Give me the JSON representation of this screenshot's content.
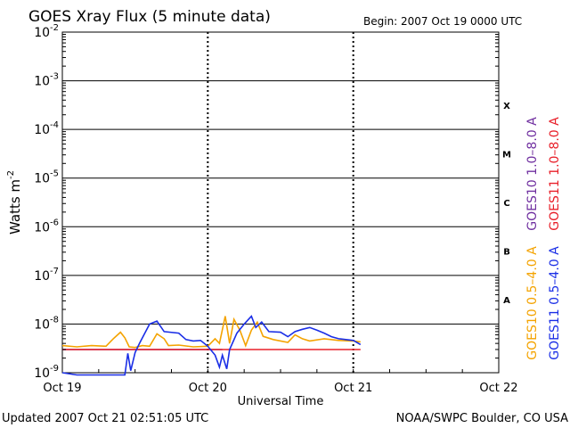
{
  "chart_data": {
    "type": "line",
    "title": "GOES Xray Flux (5 minute data)",
    "begin_label": "Begin:  2007 Oct 19 0000 UTC",
    "ylabel": "Watts m",
    "ylabel_exp": "-2",
    "xlabel": "Universal Time",
    "y_scale": "log",
    "ylim": [
      1e-09,
      0.01
    ],
    "y_ticks": [
      {
        "base": "10",
        "exp": "-2"
      },
      {
        "base": "10",
        "exp": "-3"
      },
      {
        "base": "10",
        "exp": "-4"
      },
      {
        "base": "10",
        "exp": "-5"
      },
      {
        "base": "10",
        "exp": "-6"
      },
      {
        "base": "10",
        "exp": "-7"
      },
      {
        "base": "10",
        "exp": "-8"
      },
      {
        "base": "10",
        "exp": "-9"
      }
    ],
    "x_ticks": [
      "Oct 19",
      "Oct 20",
      "Oct 21",
      "Oct 22"
    ],
    "xlim_days": [
      0,
      3
    ],
    "flare_classes": [
      {
        "label": "X",
        "exp": -4
      },
      {
        "label": "M",
        "exp": -5
      },
      {
        "label": "C",
        "exp": -6
      },
      {
        "label": "B",
        "exp": -7
      },
      {
        "label": "A",
        "exp": -8
      }
    ],
    "grid": true,
    "legend_position": "right",
    "legend": [
      {
        "name": "GOES10 1.0–8.0 A",
        "color": "#7030a0"
      },
      {
        "name": "GOES11 1.0–8.0 A",
        "color": "#e8202a"
      },
      {
        "name": "GOES10 0.5–4.0 A",
        "color": "#f4a300"
      },
      {
        "name": "GOES11 0.5–4.0 A",
        "color": "#1a2ee6"
      }
    ],
    "series": [
      {
        "name": "GOES10 1.0–8.0 A",
        "color": "#7030a0",
        "points": [
          [
            0.0,
            3e-09
          ],
          [
            1.1,
            3e-09
          ]
        ]
      },
      {
        "name": "GOES11 1.0–8.0 A",
        "color": "#e8202a",
        "points": [
          [
            0.0,
            3e-09
          ],
          [
            2.0,
            3e-09
          ],
          [
            2.05,
            3e-09
          ]
        ]
      },
      {
        "name": "GOES10 0.5–4.0 A",
        "color": "#f4a300",
        "points": [
          [
            0.0,
            3.6e-09
          ],
          [
            0.1,
            3.4e-09
          ],
          [
            0.2,
            3.6e-09
          ],
          [
            0.3,
            3.5e-09
          ],
          [
            0.35,
            5e-09
          ],
          [
            0.4,
            6.8e-09
          ],
          [
            0.43,
            5.2e-09
          ],
          [
            0.46,
            3.4e-09
          ],
          [
            0.5,
            3.3e-09
          ],
          [
            0.55,
            3.6e-09
          ],
          [
            0.6,
            3.5e-09
          ],
          [
            0.65,
            6.3e-09
          ],
          [
            0.7,
            5e-09
          ],
          [
            0.73,
            3.6e-09
          ],
          [
            0.8,
            3.7e-09
          ],
          [
            0.9,
            3.4e-09
          ],
          [
            1.0,
            3.5e-09
          ],
          [
            1.05,
            5e-09
          ],
          [
            1.08,
            4e-09
          ],
          [
            1.12,
            1.45e-08
          ],
          [
            1.15,
            4e-09
          ],
          [
            1.18,
            1.25e-08
          ],
          [
            1.22,
            7.5e-09
          ],
          [
            1.26,
            3.6e-09
          ],
          [
            1.3,
            7.5e-09
          ],
          [
            1.34,
            1.1e-08
          ],
          [
            1.38,
            5.6e-09
          ],
          [
            1.45,
            4.8e-09
          ],
          [
            1.55,
            4.2e-09
          ],
          [
            1.6,
            6e-09
          ],
          [
            1.65,
            5e-09
          ],
          [
            1.7,
            4.5e-09
          ],
          [
            1.8,
            5e-09
          ],
          [
            1.9,
            4.6e-09
          ],
          [
            2.0,
            4.5e-09
          ],
          [
            2.05,
            4.3e-09
          ]
        ]
      },
      {
        "name": "GOES11 0.5–4.0 A",
        "color": "#1a2ee6",
        "points": [
          [
            0.0,
            1e-09
          ],
          [
            0.1,
            9e-10
          ],
          [
            0.2,
            9e-10
          ],
          [
            0.3,
            9e-10
          ],
          [
            0.43,
            9e-10
          ],
          [
            0.45,
            2.5e-09
          ],
          [
            0.47,
            1.1e-09
          ],
          [
            0.5,
            2.6e-09
          ],
          [
            0.53,
            4e-09
          ],
          [
            0.6,
            1e-08
          ],
          [
            0.65,
            1.15e-08
          ],
          [
            0.7,
            7e-09
          ],
          [
            0.8,
            6.5e-09
          ],
          [
            0.85,
            4.8e-09
          ],
          [
            0.9,
            4.5e-09
          ],
          [
            0.95,
            4.6e-09
          ],
          [
            1.0,
            3.5e-09
          ],
          [
            1.05,
            2.3e-09
          ],
          [
            1.08,
            1.3e-09
          ],
          [
            1.1,
            2.3e-09
          ],
          [
            1.13,
            1.2e-09
          ],
          [
            1.15,
            3e-09
          ],
          [
            1.2,
            6.5e-09
          ],
          [
            1.25,
            1e-08
          ],
          [
            1.28,
            1.25e-08
          ],
          [
            1.3,
            1.45e-08
          ],
          [
            1.33,
            8.5e-09
          ],
          [
            1.37,
            1.1e-08
          ],
          [
            1.42,
            7e-09
          ],
          [
            1.5,
            6.8e-09
          ],
          [
            1.55,
            5.5e-09
          ],
          [
            1.6,
            7e-09
          ],
          [
            1.65,
            7.8e-09
          ],
          [
            1.7,
            8.5e-09
          ],
          [
            1.75,
            7.5e-09
          ],
          [
            1.8,
            6.5e-09
          ],
          [
            1.85,
            5.5e-09
          ],
          [
            1.9,
            5e-09
          ],
          [
            2.0,
            4.6e-09
          ],
          [
            2.05,
            3.8e-09
          ]
        ]
      }
    ]
  },
  "footer": {
    "updated": "Updated 2007 Oct 21 02:51:05 UTC",
    "credit": "NOAA/SWPC Boulder, CO USA"
  }
}
